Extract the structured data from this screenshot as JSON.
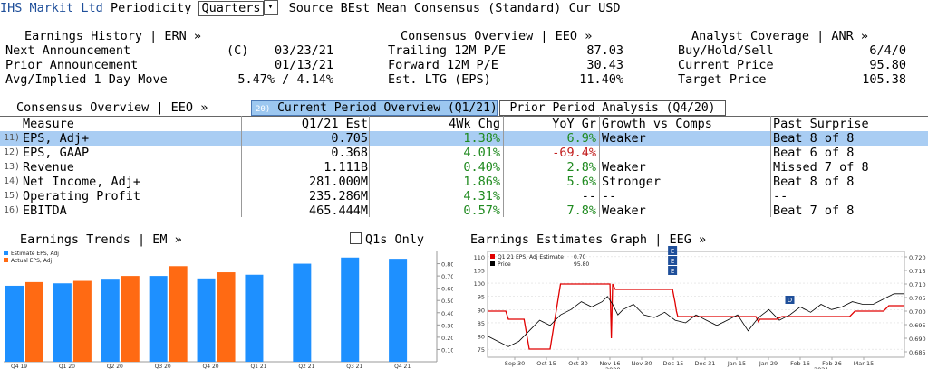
{
  "topbar": {
    "company": "IHS Markit Ltd",
    "periodicity_label": "Periodicity",
    "periodicity_value": "Quarters",
    "dropdown_glyph": "▾",
    "source_label": "Source",
    "source_value": "BEst Mean Consensus (Standard)",
    "cur_label": "Cur",
    "cur_value": "USD"
  },
  "earnings_history": {
    "header": "Earnings History | ERN »",
    "rows": [
      {
        "label": "Next Announcement",
        "prefix": "(C)",
        "value": "03/23/21"
      },
      {
        "label": "Prior Announcement",
        "prefix": "",
        "value": "01/13/21"
      },
      {
        "label": "Avg/Implied 1 Day Move",
        "prefix": "",
        "value": "5.47% / 4.14%"
      }
    ]
  },
  "consensus_overview": {
    "header": "Consensus Overview | EEO »",
    "rows": [
      {
        "label": "Trailing 12M P/E",
        "value": "87.03"
      },
      {
        "label": "Forward 12M P/E",
        "value": "30.43"
      },
      {
        "label": "Est. LTG (EPS)",
        "value": "11.40%"
      }
    ]
  },
  "analyst_coverage": {
    "header": "Analyst Coverage | ANR »",
    "rows": [
      {
        "label": "Buy/Hold/Sell",
        "value": "6/4/0"
      },
      {
        "label": "Current Price",
        "value": "95.80"
      },
      {
        "label": "Target Price",
        "value": "105.38"
      }
    ]
  },
  "section2": {
    "header": "Consensus Overview | EEO »",
    "tab_active_num": "20)",
    "tab_active": "Current Period Overview (Q1/21)",
    "tab_inactive": "Prior Period Analysis (Q4/20)"
  },
  "table": {
    "columns": [
      "Measure",
      "Q1/21 Est",
      "4Wk Chg",
      "YoY Gr",
      "Growth vs Comps",
      "Past Surprise"
    ],
    "rows": [
      {
        "num": "11)",
        "measure": "EPS, Adj+",
        "est": "0.705",
        "chg": "1.38%",
        "yoy": "6.9%",
        "comps": "Weaker",
        "surprise": "Beat 8 of 8",
        "chg_color": "green",
        "yoy_color": "green",
        "selected": true
      },
      {
        "num": "12)",
        "measure": "EPS, GAAP",
        "est": "0.368",
        "chg": "4.01%",
        "yoy": "-69.4%",
        "comps": "",
        "surprise": "Beat 6 of 8",
        "chg_color": "green",
        "yoy_color": "red",
        "selected": false
      },
      {
        "num": "13)",
        "measure": "Revenue",
        "est": "1.111B",
        "chg": "0.40%",
        "yoy": "2.8%",
        "comps": "Weaker",
        "surprise": "Missed 7 of 8",
        "chg_color": "green",
        "yoy_color": "green",
        "selected": false
      },
      {
        "num": "14)",
        "measure": "Net Income, Adj+",
        "est": "281.000M",
        "chg": "1.86%",
        "yoy": "5.6%",
        "comps": "Stronger",
        "surprise": "Beat 8 of 8",
        "chg_color": "green",
        "yoy_color": "green",
        "selected": false
      },
      {
        "num": "15)",
        "measure": "Operating Profit",
        "est": "235.286M",
        "chg": "4.31%",
        "yoy": "--",
        "comps": "--",
        "surprise": "--",
        "chg_color": "green",
        "yoy_color": "black",
        "selected": false
      },
      {
        "num": "16)",
        "measure": "EBITDA",
        "est": "465.444M",
        "chg": "0.57%",
        "yoy": "7.8%",
        "comps": "Weaker",
        "surprise": "Beat 7 of 8",
        "chg_color": "green",
        "yoy_color": "green",
        "selected": false
      }
    ]
  },
  "earnings_trends": {
    "header": "Earnings Trends | EM »",
    "q1s_only": "Q1s Only"
  },
  "earnings_graph": {
    "header": "Earnings Estimates Graph | EEG »"
  },
  "chart_data": [
    {
      "type": "bar",
      "categories": [
        "Q4 19",
        "Q1 20",
        "Q2 20",
        "Q3 20",
        "Q4 20",
        "Q1 21",
        "Q2 21",
        "Q3 21",
        "Q4 21"
      ],
      "series": [
        {
          "name": "Estimate EPS, Adj",
          "color": "#1e90ff",
          "values": [
            0.62,
            0.64,
            0.67,
            0.7,
            0.68,
            0.71,
            0.8,
            0.85,
            0.84
          ]
        },
        {
          "name": "Actual EPS, Adj",
          "color": "#ff6a13",
          "values": [
            0.65,
            0.66,
            0.7,
            0.78,
            0.73,
            null,
            null,
            null,
            null
          ]
        }
      ],
      "ylim": [
        0,
        0.9
      ],
      "yticks": [
        "0.10",
        "0.20",
        "0.30",
        "0.40",
        "0.50",
        "0.60",
        "0.70",
        "0.80"
      ],
      "legend": "top-left",
      "grid": false
    },
    {
      "type": "line",
      "x_ticks": [
        "Sep 30",
        "Oct 15",
        "Oct 30",
        "Nov 16",
        "Nov 30",
        "Dec 15",
        "Dec 31",
        "Jan 15",
        "Jan 29",
        "Feb 16",
        "Feb 26",
        "Mar 15"
      ],
      "year_labels": [
        "2020",
        "2021"
      ],
      "series": [
        {
          "name": "Q1 21 EPS, Adj Estimate",
          "legend_value": "0.70",
          "color": "#e00000",
          "axis": "right",
          "x": [
            0,
            7,
            8,
            14,
            16,
            24,
            28,
            47,
            47.5,
            48,
            49,
            71,
            72,
            72.5,
            73,
            103,
            104,
            104.5,
            106,
            111,
            113,
            139,
            141,
            152,
            154,
            160
          ],
          "y": [
            0.7,
            0.7,
            0.697,
            0.697,
            0.686,
            0.686,
            0.71,
            0.71,
            0.69,
            0.71,
            0.708,
            0.708,
            0.703,
            0.7,
            0.698,
            0.698,
            0.696,
            0.697,
            0.697,
            0.697,
            0.698,
            0.698,
            0.7,
            0.7,
            0.702,
            0.702
          ]
        },
        {
          "name": "Price",
          "legend_value": "95.80",
          "color": "#000000",
          "axis": "left",
          "x": [
            0,
            4,
            8,
            12,
            16,
            20,
            24,
            28,
            32,
            36,
            40,
            44,
            46,
            48,
            50,
            52,
            56,
            60,
            64,
            68,
            72,
            76,
            80,
            84,
            88,
            92,
            96,
            100,
            104,
            108,
            112,
            116,
            120,
            124,
            128,
            132,
            136,
            140,
            144,
            148,
            152,
            156,
            160
          ],
          "y": [
            80,
            78,
            76,
            78,
            82,
            86,
            84,
            88,
            90,
            93,
            91,
            93,
            95,
            92,
            88,
            90,
            92,
            88,
            87,
            89,
            86,
            85,
            88,
            86,
            84,
            86,
            88,
            82,
            87,
            90,
            86,
            88,
            91,
            89,
            92,
            90,
            91,
            93,
            92,
            92,
            94,
            96,
            96
          ]
        }
      ],
      "markers": [
        "E",
        "E",
        "E",
        "D"
      ],
      "y_left_ticks": [
        "75",
        "80",
        "85",
        "90",
        "95",
        "100",
        "105",
        "110"
      ],
      "y_right_ticks": [
        "0.685",
        "0.690",
        "0.695",
        "0.700",
        "0.705",
        "0.710",
        "0.715",
        "0.720"
      ],
      "legend": "top-left"
    }
  ]
}
